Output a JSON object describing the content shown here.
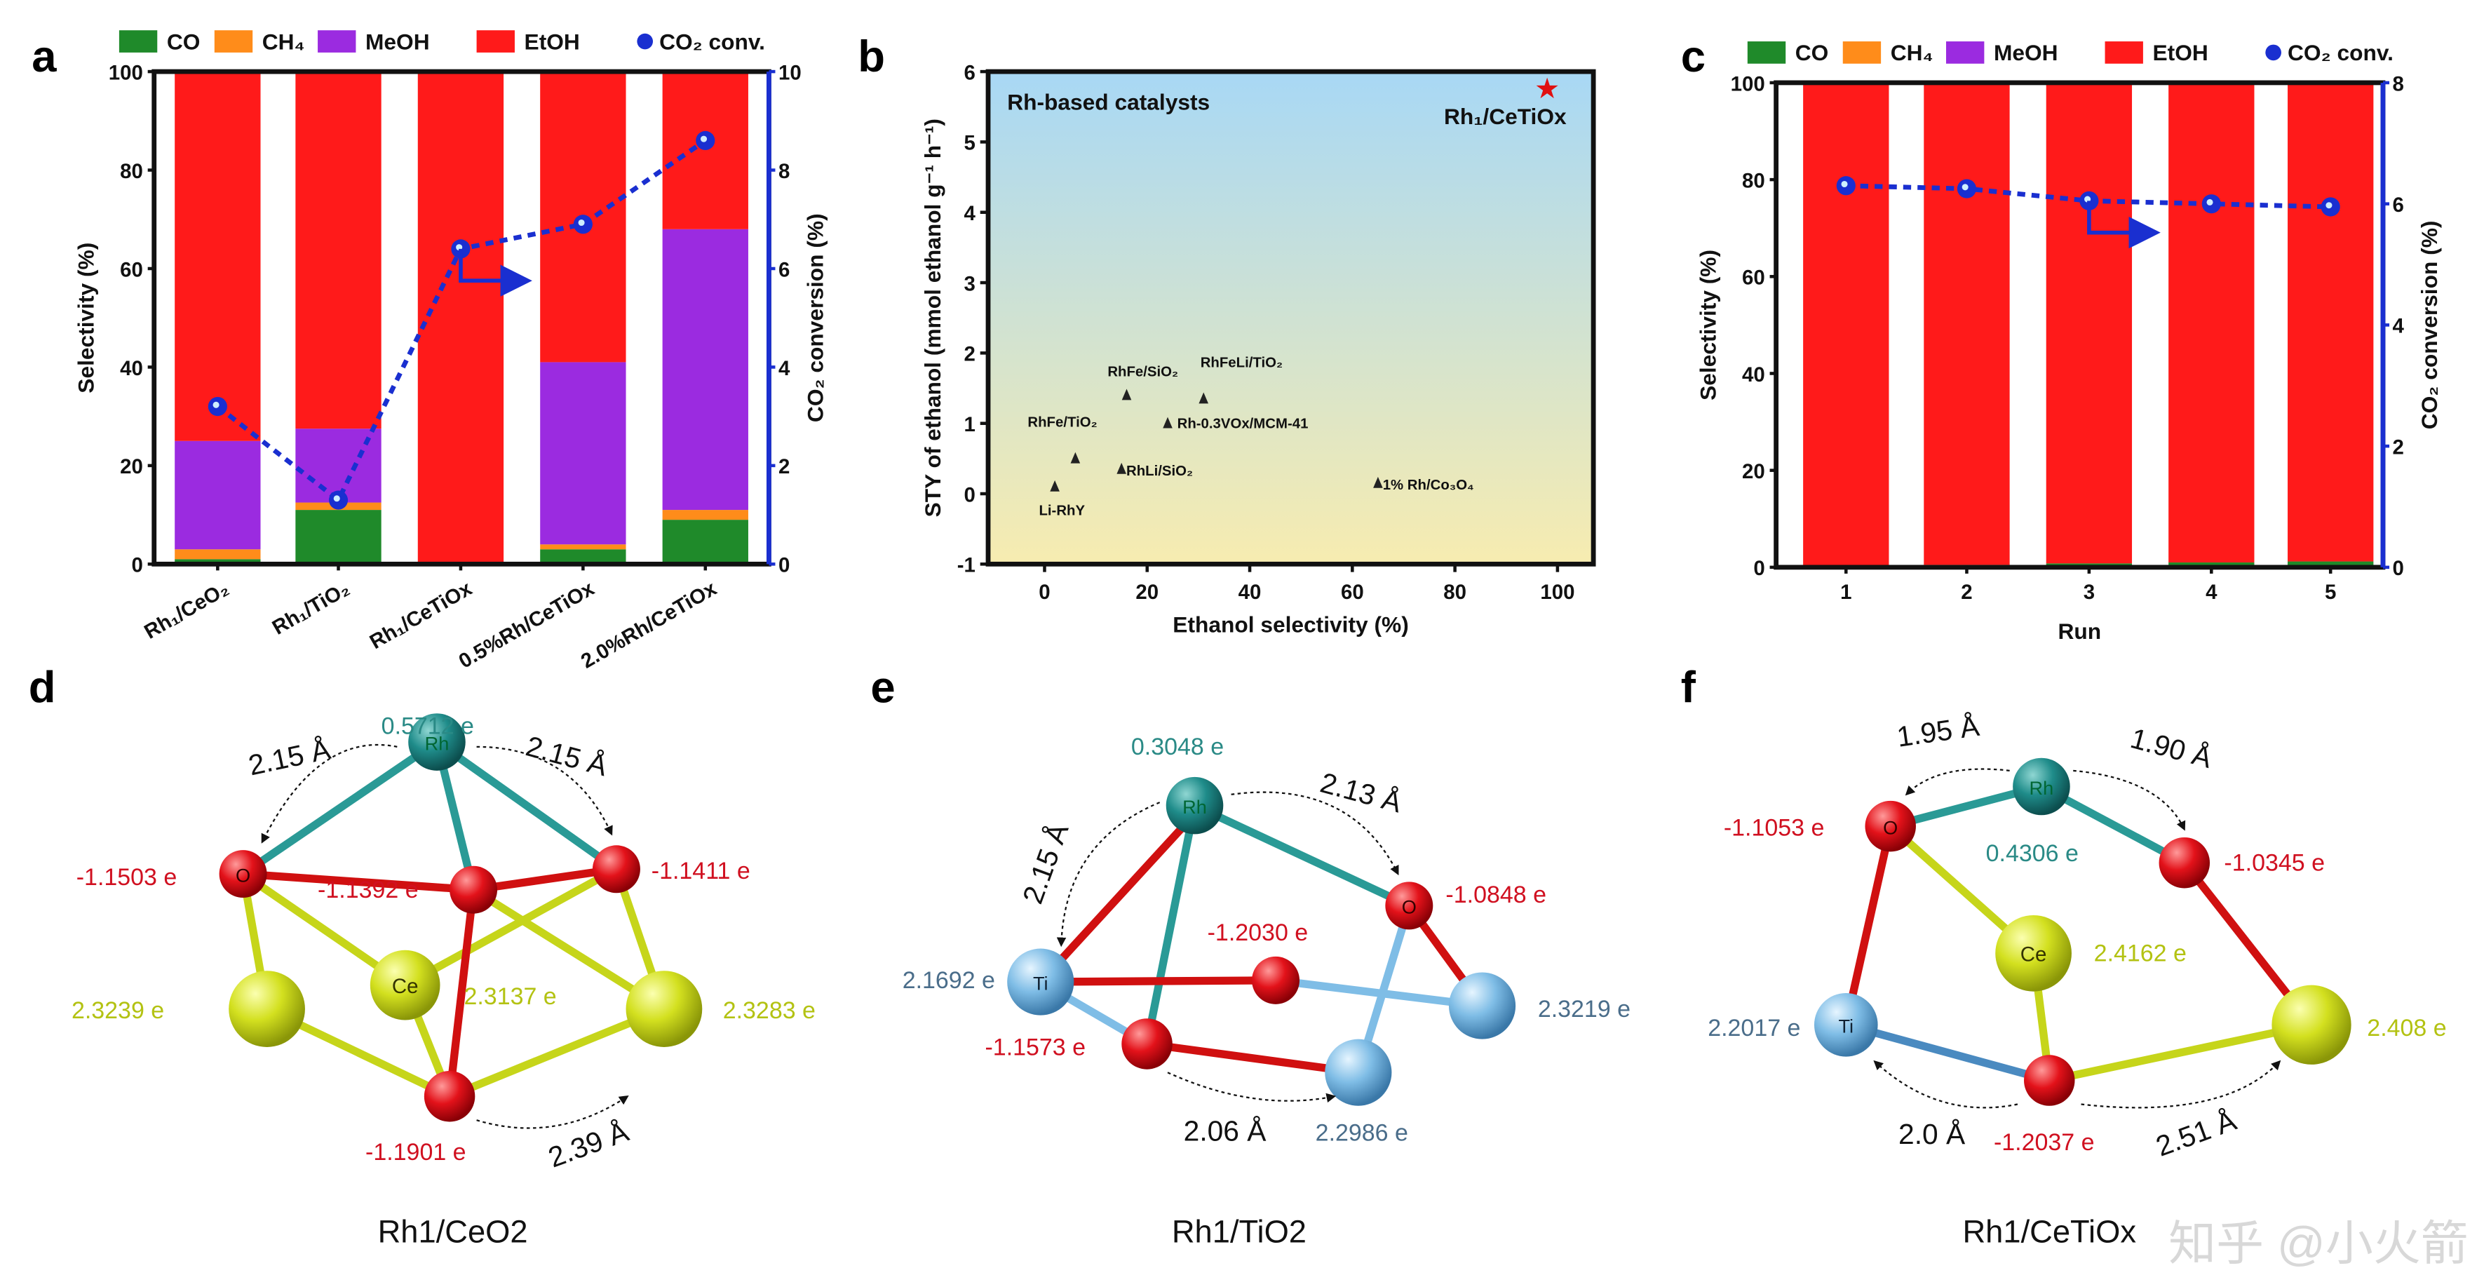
{
  "panels": {
    "a": "a",
    "b": "b",
    "c": "c",
    "d": "d",
    "e": "e",
    "f": "f"
  },
  "legend": [
    {
      "label": "CO",
      "color": "#1f8a2a"
    },
    {
      "label": "CH₄",
      "color": "#ff8c1a"
    },
    {
      "label": "MeOH",
      "color": "#9b2be0"
    },
    {
      "label": "EtOH",
      "color": "#ff1a1a"
    },
    {
      "label": "CO₂ conv.",
      "color": "#1a2fd0"
    }
  ],
  "chart_data": [
    {
      "panel": "a",
      "type": "bar",
      "stacked": true,
      "categories": [
        "Rh₁/CeO₂",
        "Rh₁/TiO₂",
        "Rh₁/CeTiOx",
        "0.5%Rh/CeTiOx",
        "2.0%Rh/CeTiOx"
      ],
      "series": [
        {
          "name": "CO",
          "values": [
            1,
            11,
            0,
            3,
            9
          ]
        },
        {
          "name": "CH₄",
          "values": [
            2,
            1.5,
            0,
            1,
            2
          ]
        },
        {
          "name": "MeOH",
          "values": [
            22,
            15,
            0,
            37,
            57
          ]
        },
        {
          "name": "EtOH",
          "values": [
            75,
            72.5,
            100,
            59,
            32
          ]
        }
      ],
      "line_series": {
        "name": "CO₂ conv.",
        "values": [
          3.2,
          1.3,
          6.4,
          6.9,
          8.6
        ],
        "axis": "right"
      },
      "ylabel": "Selectivity (%)",
      "ylim": [
        0,
        100
      ],
      "yticks": [
        "0",
        "20",
        "40",
        "60",
        "80",
        "100"
      ],
      "y2label": "CO₂ conversion (%)",
      "y2lim": [
        0,
        10
      ],
      "y2ticks": [
        "0",
        "2",
        "4",
        "6",
        "8",
        "10"
      ]
    },
    {
      "panel": "b",
      "type": "scatter",
      "title": "Rh-based catalysts",
      "xlabel": "Ethanol selectivity (%)",
      "ylabel": "STY of ethanol (mmol ethanol g⁻¹ h⁻¹)",
      "xlim": [
        -11,
        107
      ],
      "ylim": [
        -1,
        6
      ],
      "xticks": [
        "0",
        "20",
        "40",
        "60",
        "80",
        "100"
      ],
      "yticks": [
        "-1",
        "0",
        "1",
        "2",
        "3",
        "4",
        "5",
        "6"
      ],
      "points": [
        {
          "label": "RhFe/SiO₂",
          "x": 16,
          "y": 1.4
        },
        {
          "label": "RhFeLi/TiO₂",
          "x": 31,
          "y": 1.35
        },
        {
          "label": "Rh-0.3VOx/MCM-41",
          "x": 24,
          "y": 1.0
        },
        {
          "label": "RhFe/TiO₂",
          "x": 6,
          "y": 0.5
        },
        {
          "label": "RhLi/SiO₂",
          "x": 15,
          "y": 0.35
        },
        {
          "label": "Li-RhY",
          "x": 2,
          "y": 0.1
        },
        {
          "label": "1% Rh/Co₃O₄",
          "x": 65,
          "y": 0.15
        },
        {
          "label": "Rh₁/CeTiOx",
          "x": 98,
          "y": 5.75,
          "highlight": true
        }
      ],
      "background": "gradient sky-blue to pale yellow"
    },
    {
      "panel": "c",
      "type": "bar",
      "stacked": true,
      "categories": [
        "1",
        "2",
        "3",
        "4",
        "5"
      ],
      "series": [
        {
          "name": "CO",
          "values": [
            0.3,
            0.5,
            0.8,
            1,
            1.2
          ]
        },
        {
          "name": "CH₄",
          "values": [
            0,
            0,
            0,
            0,
            0
          ]
        },
        {
          "name": "MeOH",
          "values": [
            0,
            0,
            0,
            0,
            0
          ]
        },
        {
          "name": "EtOH",
          "values": [
            99.7,
            99.5,
            99.2,
            99,
            98.8
          ]
        }
      ],
      "line_series": {
        "name": "CO₂ conv.",
        "values": [
          6.3,
          6.25,
          6.05,
          6.0,
          5.95
        ],
        "axis": "right"
      },
      "xlabel": "Run",
      "ylabel": "Selectivity (%)",
      "ylim": [
        0,
        100
      ],
      "yticks": [
        "0",
        "20",
        "40",
        "60",
        "80",
        "100"
      ],
      "y2label": "CO₂ conversion (%)",
      "y2lim": [
        0,
        8
      ],
      "y2ticks": [
        "0",
        "2",
        "4",
        "6",
        "8"
      ]
    }
  ],
  "structures": {
    "d": {
      "caption": "Rh1/CeO2",
      "atoms": {
        "rh": "Rh",
        "o": "O",
        "ce": "Ce"
      },
      "charges": {
        "rh": "0.5712 e",
        "o_left": "-1.1503 e",
        "o_mid": "-1.1392 e",
        "o_right": "-1.1411 e",
        "ce_left": "2.3239 e",
        "ce_mid": "2.3137 e",
        "ce_right": "2.3283 e",
        "o_bottom": "-1.1901 e"
      },
      "distances": {
        "left": "2.15 Å",
        "right": "2.15 Å",
        "bottom": "2.39 Å"
      }
    },
    "e": {
      "caption": "Rh1/TiO2",
      "atoms": {
        "rh": "Rh",
        "o": "O",
        "ti": "Ti"
      },
      "charges": {
        "rh": "0.3048 e",
        "o_right": "-1.0848 e",
        "o_mid": "-1.2030 e",
        "ti_left": "2.1692 e",
        "ti_right": "2.3219 e",
        "o_bottom": "-1.1573 e",
        "ti_bottom": "2.2986 e"
      },
      "distances": {
        "left": "2.15 Å",
        "right": "2.13 Å",
        "bottom": "2.06 Å"
      }
    },
    "f": {
      "caption": "Rh1/CeTiOx",
      "atoms": {
        "rh": "Rh",
        "o": "O",
        "ce": "Ce",
        "ti": "Ti"
      },
      "charges": {
        "o_left": "-1.1053 e",
        "rh": "0.4306 e",
        "o_right": "-1.0345 e",
        "ce": "2.4162 e",
        "ti": "2.2017 e",
        "ce_right": "2.408 e",
        "o_bottom": "-1.2037 e"
      },
      "distances": {
        "left": "1.95 Å",
        "right": "1.90 Å",
        "bottom_left": "2.0 Å",
        "bottom_right": "2.51 Å"
      }
    }
  },
  "watermark": "知乎 @小火箭"
}
